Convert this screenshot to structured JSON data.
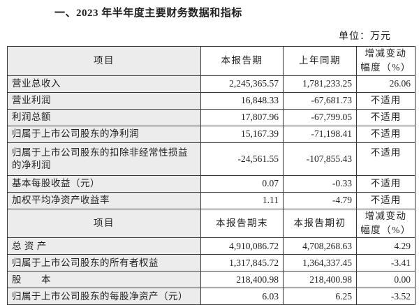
{
  "title": "一、2023 年半年度主要财务数据和指标",
  "unit_label": "单位：万元",
  "colors": {
    "text": "#1f1f1f",
    "border": "#3a3a3a",
    "item_column_bg": "#ececec"
  },
  "table": {
    "sections": [
      {
        "headers": [
          "项目",
          "本报告期",
          "上年同期",
          "增减变动\n幅度（%）"
        ],
        "rows": [
          {
            "item": "营业总收入",
            "current": "2,245,365.57",
            "prior": "1,781,233.25",
            "change": "26.06"
          },
          {
            "item": "营业利润",
            "current": "16,848.33",
            "prior": "-67,681.73",
            "change": "不适用"
          },
          {
            "item": "利润总额",
            "current": "17,807.96",
            "prior": "-67,799.05",
            "change": "不适用"
          },
          {
            "item": "归属于上市公司股东的净利润",
            "current": "15,167.39",
            "prior": "-71,198.41",
            "change": "不适用"
          },
          {
            "item": "归属于上市公司股东的扣除非经常性损益的净利润",
            "current": "-24,561.55",
            "prior": "-107,855.43",
            "change": "不适用",
            "tall": true
          },
          {
            "item": "基本每股收益（元）",
            "current": "0.07",
            "prior": "-0.33",
            "change": "不适用"
          },
          {
            "item": "加权平均净资产收益率",
            "current": "1.11",
            "prior": "-4.79",
            "change": "不适用"
          }
        ]
      },
      {
        "headers": [
          "项目",
          "本报告期末",
          "本报告期初",
          "增减变动\n幅度（%）"
        ],
        "rows": [
          {
            "item": "总 资 产",
            "current": "4,910,086.72",
            "prior": "4,708,268.63",
            "change": "4.29"
          },
          {
            "item": "归属于上市公司股东的所有者权益",
            "current": "1,317,845.72",
            "prior": "1,364,337.45",
            "change": "-3.41"
          },
          {
            "item": "股　　本",
            "current": "218,400.98",
            "prior": "218,400.98",
            "change": "0.00"
          },
          {
            "item": "归属于上市公司股东的每股净资产（元）",
            "current": "6.03",
            "prior": "6.25",
            "change": "-3.52"
          }
        ]
      }
    ]
  },
  "not_applicable_label": "不适用"
}
